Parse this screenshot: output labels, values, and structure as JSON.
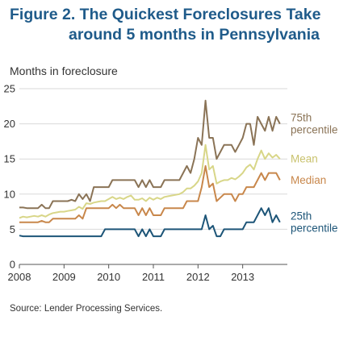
{
  "title": {
    "line1": "Figure 2. The Quickest Foreclosures Take",
    "line2": "around 5 months in Pennsylvania"
  },
  "source": "Source: Lender Processing Services.",
  "chart_data": {
    "type": "line",
    "title": "Figure 2. The Quickest Foreclosures Take around 5 months in Pennsylvania",
    "ylabel": "Months in foreclosure",
    "xlabel": "",
    "ylim": [
      0,
      25
    ],
    "yticks": [
      0,
      5,
      10,
      15,
      20,
      25
    ],
    "xlim": [
      2008,
      2014
    ],
    "xticks": [
      2008,
      2009,
      2010,
      2011,
      2012,
      2013
    ],
    "grid": "horizontal",
    "x": [
      2008.0,
      2008.0833,
      2008.1667,
      2008.25,
      2008.3333,
      2008.4167,
      2008.5,
      2008.5833,
      2008.6667,
      2008.75,
      2008.8333,
      2008.9167,
      2009.0,
      2009.0833,
      2009.1667,
      2009.25,
      2009.3333,
      2009.4167,
      2009.5,
      2009.5833,
      2009.6667,
      2009.75,
      2009.8333,
      2009.9167,
      2010.0,
      2010.0833,
      2010.1667,
      2010.25,
      2010.3333,
      2010.4167,
      2010.5,
      2010.5833,
      2010.6667,
      2010.75,
      2010.8333,
      2010.9167,
      2011.0,
      2011.0833,
      2011.1667,
      2011.25,
      2011.3333,
      2011.4167,
      2011.5,
      2011.5833,
      2011.6667,
      2011.75,
      2011.8333,
      2011.9167,
      2012.0,
      2012.0833,
      2012.1667,
      2012.25,
      2012.3333,
      2012.4167,
      2012.5,
      2012.5833,
      2012.6667,
      2012.75,
      2012.8333,
      2012.9167,
      2013.0,
      2013.0833,
      2013.1667,
      2013.25,
      2013.3333,
      2013.4167,
      2013.5,
      2013.5833,
      2013.6667,
      2013.75,
      2013.8333
    ],
    "series": [
      {
        "name": "75th percentile",
        "color": "#8a7356",
        "values": [
          8.1,
          8.1,
          8.0,
          8.0,
          8.0,
          8.0,
          8.5,
          8.0,
          8.0,
          9.0,
          9.0,
          9.0,
          9.0,
          9.0,
          9.2,
          9.0,
          10.0,
          9.3,
          10.0,
          9.0,
          11.0,
          11.0,
          11.0,
          11.0,
          11.0,
          12.0,
          12.0,
          12.0,
          12.0,
          12.0,
          12.0,
          12.0,
          11.0,
          12.0,
          11.0,
          12.0,
          11.0,
          11.0,
          11.0,
          12.0,
          12.0,
          12.0,
          12.0,
          12.0,
          13.0,
          14.0,
          13.0,
          15.0,
          18.0,
          17.0,
          23.3,
          18.0,
          18.0,
          15.0,
          16.0,
          17.0,
          17.0,
          17.0,
          16.0,
          17.0,
          18.0,
          20.0,
          20.0,
          17.0,
          21.0,
          20.0,
          19.0,
          21.0,
          19.0,
          21.0,
          20.0
        ]
      },
      {
        "name": "Mean",
        "color": "#d8d688",
        "values": [
          6.6,
          6.8,
          6.7,
          6.8,
          6.9,
          6.8,
          7.0,
          6.8,
          7.1,
          7.3,
          7.4,
          7.5,
          7.5,
          7.6,
          7.7,
          7.8,
          8.2,
          7.9,
          8.7,
          8.6,
          8.8,
          8.9,
          9.0,
          9.0,
          9.3,
          9.6,
          9.3,
          9.5,
          9.3,
          9.6,
          9.8,
          9.2,
          9.2,
          9.4,
          9.0,
          9.5,
          9.2,
          9.5,
          9.3,
          9.6,
          9.7,
          9.8,
          9.9,
          10.0,
          10.3,
          10.8,
          10.8,
          11.2,
          11.8,
          13.0,
          17.0,
          13.5,
          14.0,
          11.5,
          11.8,
          12.0,
          12.0,
          12.3,
          12.1,
          12.5,
          13.0,
          13.8,
          14.2,
          13.5,
          15.0,
          16.2,
          15.0,
          15.8,
          15.2,
          15.6,
          15.0
        ]
      },
      {
        "name": "Median",
        "color": "#c8874b",
        "values": [
          6.0,
          6.0,
          6.0,
          6.0,
          6.0,
          6.0,
          6.2,
          6.0,
          6.0,
          6.5,
          6.5,
          6.5,
          6.5,
          6.5,
          6.5,
          6.5,
          7.0,
          6.5,
          8.0,
          8.0,
          8.0,
          8.0,
          8.0,
          8.0,
          8.0,
          8.5,
          8.0,
          8.5,
          8.0,
          8.0,
          8.0,
          8.0,
          7.0,
          8.0,
          7.0,
          8.0,
          7.0,
          7.0,
          7.0,
          8.0,
          8.0,
          8.0,
          8.0,
          8.0,
          8.0,
          9.0,
          9.0,
          9.0,
          9.0,
          11.0,
          14.0,
          11.0,
          11.5,
          9.0,
          9.5,
          10.0,
          10.0,
          10.0,
          9.0,
          10.0,
          10.0,
          11.0,
          11.0,
          11.0,
          12.0,
          13.0,
          12.0,
          13.0,
          13.0,
          13.0,
          12.0
        ]
      },
      {
        "name": "25th percentile",
        "color": "#1d5578",
        "values": [
          4.1,
          4.0,
          4.0,
          4.0,
          4.0,
          4.0,
          4.0,
          4.0,
          4.0,
          4.0,
          4.0,
          4.0,
          4.0,
          4.0,
          4.0,
          4.0,
          4.0,
          4.0,
          4.0,
          4.0,
          4.0,
          4.0,
          4.0,
          5.0,
          5.0,
          5.0,
          5.0,
          5.0,
          5.0,
          5.0,
          5.0,
          5.0,
          4.0,
          5.0,
          4.0,
          5.0,
          4.0,
          4.0,
          4.0,
          5.0,
          5.0,
          5.0,
          5.0,
          5.0,
          5.0,
          5.0,
          5.0,
          5.0,
          5.0,
          5.0,
          7.0,
          5.0,
          5.5,
          4.0,
          4.0,
          5.0,
          5.0,
          5.0,
          5.0,
          5.0,
          5.0,
          6.0,
          6.0,
          6.0,
          7.0,
          8.0,
          7.0,
          8.0,
          6.0,
          7.0,
          6.0
        ]
      }
    ],
    "series_labels": [
      {
        "lines": [
          "75th",
          "percentile"
        ],
        "color": "#8a7356"
      },
      {
        "lines": [
          "Mean"
        ],
        "color": "#c9c26d"
      },
      {
        "lines": [
          "Median"
        ],
        "color": "#c8874b"
      },
      {
        "lines": [
          "25th",
          "percentile"
        ],
        "color": "#1d5578"
      }
    ]
  }
}
